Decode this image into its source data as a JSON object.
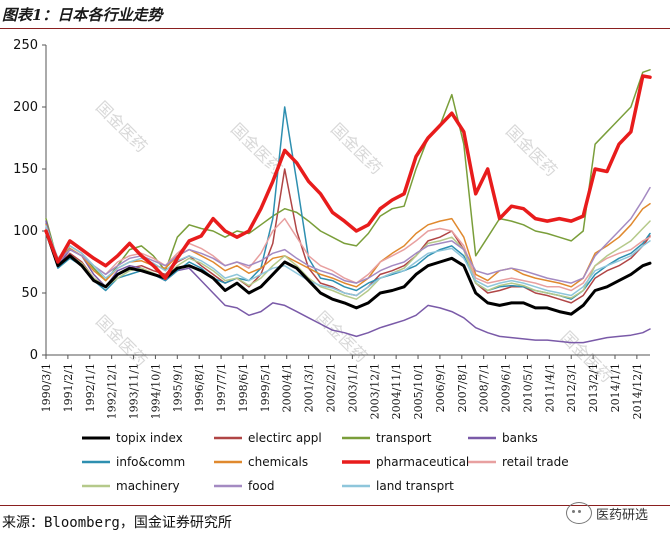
{
  "title": "图表1：日本各行业走势",
  "source": "来源：Bloomberg，国金证券研究所",
  "badge": "医药研选",
  "watermark": "国金医药",
  "chart_data": {
    "type": "line",
    "ylim": [
      0,
      250
    ],
    "yticks": [
      0,
      50,
      100,
      150,
      200,
      250
    ],
    "xlabels": [
      "1990/3/1",
      "1991/2/1",
      "1992/1/1",
      "1992/12/1",
      "1993/11/1",
      "1994/10/1",
      "1995/9/1",
      "1996/8/1",
      "1997/7/1",
      "1998/6/1",
      "1999/5/1",
      "2000/4/1",
      "2001/3/1",
      "2002/2/1",
      "2003/1/1",
      "2003/12/1",
      "2004/11/1",
      "2005/10/1",
      "2006/9/1",
      "2007/8/1",
      "2008/7/1",
      "2009/6/1",
      "2010/5/1",
      "2011/4/1",
      "2012/3/1",
      "2013/2/1",
      "2014/1/1",
      "2014/12/1"
    ],
    "x": [
      1990.0,
      1990.5,
      1991.0,
      1991.5,
      1992.0,
      1992.5,
      1993.0,
      1993.5,
      1994.0,
      1994.5,
      1995.0,
      1995.5,
      1996.0,
      1996.5,
      1997.0,
      1997.5,
      1998.0,
      1998.5,
      1999.0,
      1999.5,
      2000.0,
      2000.5,
      2001.0,
      2001.5,
      2002.0,
      2002.5,
      2003.0,
      2003.5,
      2004.0,
      2004.5,
      2005.0,
      2005.5,
      2006.0,
      2006.5,
      2007.0,
      2007.5,
      2008.0,
      2008.5,
      2009.0,
      2009.5,
      2010.0,
      2010.5,
      2011.0,
      2011.5,
      2012.0,
      2012.5,
      2013.0,
      2013.5,
      2014.0,
      2014.5,
      2015.0,
      2015.3
    ],
    "series": [
      {
        "name": "topix index",
        "color": "#000000",
        "width": 3,
        "values": [
          100,
          72,
          80,
          72,
          60,
          55,
          65,
          70,
          68,
          65,
          62,
          70,
          72,
          68,
          62,
          52,
          58,
          50,
          55,
          65,
          75,
          70,
          60,
          50,
          45,
          42,
          38,
          42,
          50,
          52,
          55,
          65,
          72,
          75,
          78,
          72,
          50,
          42,
          40,
          42,
          42,
          38,
          38,
          35,
          33,
          40,
          52,
          55,
          60,
          65,
          72,
          74
        ]
      },
      {
        "name": "electirc appl",
        "color": "#b04545",
        "width": 1.5,
        "values": [
          100,
          72,
          82,
          75,
          62,
          55,
          65,
          70,
          72,
          68,
          65,
          75,
          80,
          72,
          65,
          58,
          62,
          55,
          65,
          90,
          150,
          100,
          70,
          58,
          55,
          50,
          48,
          55,
          65,
          68,
          72,
          80,
          92,
          95,
          100,
          85,
          58,
          50,
          52,
          55,
          55,
          50,
          48,
          45,
          42,
          48,
          62,
          68,
          72,
          78,
          88,
          96
        ]
      },
      {
        "name": "transport",
        "color": "#7a9e3a",
        "width": 1.5,
        "values": [
          110,
          75,
          88,
          82,
          70,
          60,
          72,
          85,
          88,
          80,
          68,
          95,
          105,
          102,
          100,
          95,
          100,
          98,
          105,
          112,
          118,
          115,
          108,
          100,
          95,
          90,
          88,
          98,
          112,
          118,
          120,
          150,
          175,
          185,
          210,
          170,
          80,
          95,
          110,
          108,
          105,
          100,
          98,
          95,
          92,
          100,
          170,
          180,
          190,
          200,
          228,
          230
        ]
      },
      {
        "name": "banks",
        "color": "#7a5aa8",
        "width": 1.5,
        "values": [
          108,
          72,
          85,
          80,
          65,
          55,
          68,
          72,
          70,
          65,
          60,
          68,
          70,
          60,
          50,
          40,
          38,
          32,
          35,
          42,
          40,
          35,
          30,
          25,
          20,
          18,
          15,
          18,
          22,
          25,
          28,
          32,
          40,
          38,
          35,
          30,
          22,
          18,
          15,
          14,
          13,
          12,
          12,
          11,
          10,
          10,
          12,
          14,
          15,
          16,
          18,
          21
        ]
      },
      {
        "name": "info&comm",
        "color": "#2e8fb0",
        "width": 1.5,
        "values": [
          100,
          70,
          78,
          72,
          60,
          52,
          62,
          65,
          68,
          65,
          60,
          68,
          75,
          70,
          62,
          58,
          62,
          60,
          70,
          110,
          200,
          140,
          78,
          62,
          60,
          55,
          52,
          58,
          62,
          65,
          68,
          72,
          80,
          85,
          88,
          80,
          58,
          52,
          55,
          56,
          55,
          52,
          50,
          48,
          45,
          52,
          65,
          72,
          78,
          82,
          90,
          98
        ]
      },
      {
        "name": "chemicals",
        "color": "#e0892e",
        "width": 1.5,
        "values": [
          105,
          75,
          86,
          80,
          68,
          60,
          70,
          75,
          76,
          72,
          70,
          80,
          85,
          80,
          75,
          68,
          72,
          66,
          70,
          78,
          80,
          75,
          70,
          65,
          62,
          58,
          55,
          62,
          75,
          82,
          88,
          98,
          105,
          108,
          110,
          95,
          65,
          60,
          68,
          70,
          65,
          62,
          60,
          58,
          55,
          62,
          82,
          88,
          95,
          105,
          118,
          122
        ]
      },
      {
        "name": "pharmaceutical",
        "color": "#e81c1c",
        "width": 3.5,
        "values": [
          100,
          75,
          92,
          85,
          78,
          72,
          80,
          90,
          80,
          72,
          62,
          78,
          92,
          96,
          110,
          100,
          95,
          100,
          118,
          140,
          165,
          155,
          140,
          130,
          115,
          108,
          100,
          105,
          118,
          125,
          130,
          160,
          175,
          185,
          195,
          180,
          130,
          150,
          110,
          120,
          118,
          110,
          108,
          110,
          108,
          112,
          150,
          148,
          170,
          180,
          225,
          224
        ]
      },
      {
        "name": "retail trade",
        "color": "#e8a0a0",
        "width": 1.5,
        "values": [
          102,
          78,
          88,
          82,
          72,
          65,
          75,
          80,
          82,
          78,
          72,
          82,
          90,
          86,
          80,
          72,
          75,
          70,
          82,
          100,
          110,
          95,
          80,
          72,
          68,
          62,
          58,
          65,
          75,
          80,
          85,
          92,
          100,
          102,
          100,
          88,
          62,
          58,
          60,
          62,
          60,
          58,
          55,
          55,
          52,
          58,
          72,
          78,
          82,
          85,
          92,
          95
        ]
      },
      {
        "name": "machinery",
        "color": "#b5c98a",
        "width": 1.5,
        "values": [
          102,
          72,
          80,
          74,
          62,
          55,
          62,
          68,
          70,
          66,
          62,
          72,
          78,
          74,
          68,
          60,
          62,
          56,
          62,
          72,
          80,
          72,
          62,
          55,
          52,
          48,
          45,
          52,
          62,
          66,
          70,
          80,
          90,
          92,
          95,
          85,
          58,
          52,
          56,
          58,
          56,
          52,
          50,
          48,
          46,
          52,
          72,
          80,
          86,
          92,
          102,
          108
        ]
      },
      {
        "name": "food",
        "color": "#a48ac2",
        "width": 1.5,
        "values": [
          103,
          76,
          85,
          80,
          72,
          65,
          72,
          78,
          80,
          76,
          72,
          80,
          85,
          82,
          78,
          72,
          75,
          72,
          76,
          82,
          85,
          78,
          72,
          68,
          65,
          60,
          58,
          62,
          68,
          72,
          75,
          82,
          88,
          90,
          92,
          85,
          68,
          65,
          68,
          70,
          68,
          65,
          62,
          60,
          58,
          62,
          80,
          90,
          100,
          110,
          125,
          135
        ]
      },
      {
        "name": "land transprt",
        "color": "#8ec6db",
        "width": 1.5,
        "values": [
          104,
          78,
          88,
          82,
          72,
          62,
          70,
          75,
          78,
          74,
          68,
          76,
          80,
          76,
          70,
          62,
          65,
          60,
          65,
          70,
          72,
          66,
          60,
          56,
          54,
          50,
          48,
          55,
          62,
          66,
          68,
          75,
          82,
          84,
          86,
          78,
          60,
          55,
          58,
          60,
          58,
          55,
          52,
          50,
          48,
          55,
          68,
          72,
          76,
          80,
          88,
          92
        ]
      }
    ]
  }
}
